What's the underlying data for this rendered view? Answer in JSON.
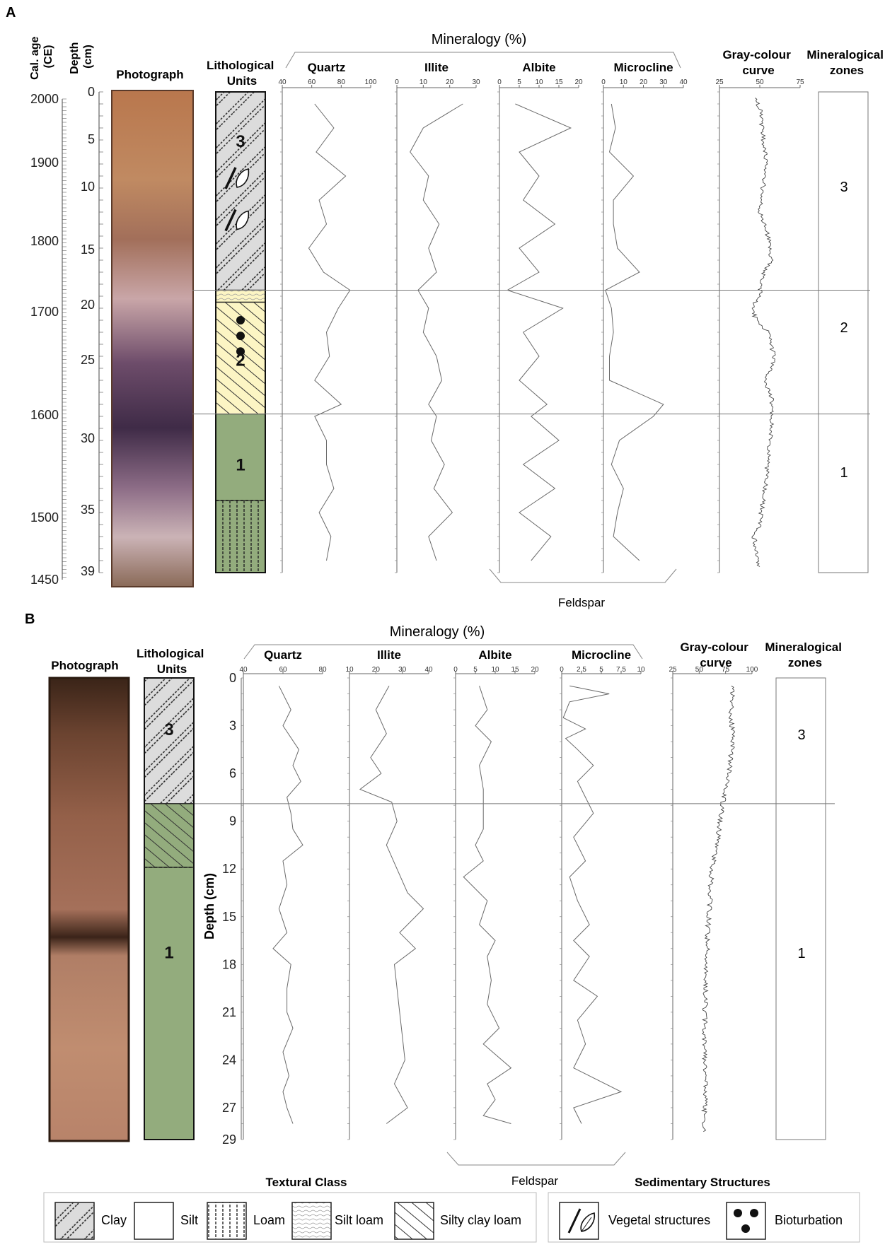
{
  "panelA": {
    "label": "A",
    "mineralogy_title": "Mineralogy (%)",
    "feldspar_label": "Feldspar",
    "headers": {
      "age": "Cal. age (CE)",
      "depth": "Depth (cm)",
      "photo": "Photograph",
      "litho": "Lithological Units",
      "gray": "Gray-colour curve",
      "zones": "Mineralogical zones"
    },
    "age_ticks": [
      "2000",
      "1900",
      "1800",
      "1700",
      "1600",
      "1500",
      "1450"
    ],
    "depth_ticks": [
      "0",
      "5",
      "10",
      "15",
      "20",
      "25",
      "30",
      "35",
      "39"
    ],
    "units": [
      "3",
      "2",
      "1"
    ],
    "zones": [
      "3",
      "2",
      "1"
    ],
    "boundaries_depth_cm": [
      16.5,
      26.8
    ],
    "litho": {
      "unit3_top": 0,
      "unit3_bottom": 16.5,
      "unit3_texture": "Clay",
      "thin_top": 16.5,
      "thin_bottom": 17.5,
      "thin_texture": "Silt loam",
      "unit2_top": 17.5,
      "unit2_bottom": 26.8,
      "unit2_texture": "Silty clay loam",
      "unit1_top": 26.8,
      "unit1_bottom": 40,
      "unit1_texture": "Silt",
      "loam_top": 34,
      "loam_bottom": 40,
      "loam_texture": "Loam",
      "vegetal_depths": [
        7,
        10.5
      ],
      "bioturbation_depths": [
        19,
        20.3,
        21.6
      ]
    },
    "columns": [
      {
        "name": "Quartz",
        "range": [
          40,
          100
        ],
        "ticks": [
          "40",
          "60",
          "80",
          "100"
        ]
      },
      {
        "name": "Illite",
        "range": [
          0,
          30
        ],
        "ticks": [
          "0",
          "10",
          "20",
          "30"
        ]
      },
      {
        "name": "Albite",
        "range": [
          0,
          20
        ],
        "ticks": [
          "0",
          "5",
          "10",
          "15",
          "20"
        ]
      },
      {
        "name": "Microcline",
        "range": [
          0,
          40
        ],
        "ticks": [
          "0",
          "10",
          "20",
          "30",
          "40"
        ]
      },
      {
        "name": "Gray-colour curve",
        "range": [
          25,
          75
        ],
        "ticks": [
          "25",
          "50",
          "75"
        ]
      }
    ]
  },
  "panelB": {
    "label": "B",
    "mineralogy_title": "Mineralogy (%)",
    "feldspar_label": "Feldspar",
    "depth_axis_label": "Depth (cm)",
    "headers": {
      "photo": "Photograph",
      "litho": "Lithological Units",
      "gray": "Gray-colour curve",
      "zones": "Mineralogical zones"
    },
    "depth_ticks": [
      "0",
      "3",
      "6",
      "9",
      "12",
      "15",
      "18",
      "21",
      "24",
      "27",
      "29"
    ],
    "units": [
      "3",
      "1"
    ],
    "zones": [
      "3",
      "1"
    ],
    "boundaries_depth_cm": [
      7.9
    ],
    "litho": {
      "unit3_top": 0,
      "unit3_bottom": 7.9,
      "unit3_texture": "Clay",
      "sub_top": 7.9,
      "sub_bottom": 11.9,
      "sub_texture": "Silty clay loam",
      "unit1_top": 11.9,
      "unit1_bottom": 29,
      "unit1_texture": "Silt"
    },
    "columns": [
      {
        "name": "Quartz",
        "range": [
          40,
          80
        ],
        "ticks": [
          "40",
          "60",
          "80"
        ]
      },
      {
        "name": "Illite",
        "range": [
          10,
          40
        ],
        "ticks": [
          "10",
          "20",
          "30",
          "40"
        ]
      },
      {
        "name": "Albite",
        "range": [
          0,
          20
        ],
        "ticks": [
          "0",
          "5",
          "10",
          "15",
          "20"
        ]
      },
      {
        "name": "Microcline",
        "range": [
          0,
          10
        ],
        "ticks": [
          "0",
          "2.5",
          "5",
          "7.5",
          "10"
        ]
      },
      {
        "name": "Gray-colour curve",
        "range": [
          25,
          100
        ],
        "ticks": [
          "25",
          "50",
          "75",
          "100"
        ]
      }
    ]
  },
  "legend": {
    "textural_title": "Textural Class",
    "textural": [
      "Clay",
      "Silt",
      "Loam",
      "Silt loam",
      "Silty clay loam"
    ],
    "structures_title": "Sedimentary Structures",
    "structures": [
      "Vegetal structures",
      "Bioturbation"
    ]
  },
  "colors": {
    "unit_grey": "#dcdcdc",
    "unit_yellow": "#fcf5c4",
    "unit_green": "#93ac7d",
    "line": "#555555"
  },
  "chart_data": [
    {
      "type": "line",
      "panel": "A",
      "depth_unit": "cm",
      "depth_range": [
        0,
        40
      ],
      "series": [
        {
          "name": "Quartz",
          "depth": [
            1,
            3,
            5,
            7,
            9,
            11,
            13,
            15,
            16.5,
            18,
            20,
            22,
            24,
            26,
            27,
            29,
            31,
            33,
            35,
            37,
            39
          ],
          "values": [
            62,
            75,
            63,
            83,
            65,
            70,
            58,
            68,
            86,
            78,
            70,
            72,
            62,
            80,
            62,
            70,
            70,
            75,
            65,
            73,
            70
          ]
        },
        {
          "name": "Illite",
          "depth": [
            1,
            3,
            5,
            7,
            9,
            11,
            13,
            15,
            16.5,
            18,
            20,
            22,
            24,
            26,
            27,
            29,
            31,
            33,
            35,
            37,
            39
          ],
          "values": [
            25,
            10,
            5,
            12,
            10,
            16,
            12,
            15,
            8,
            12,
            10,
            15,
            17,
            12,
            15,
            13,
            18,
            14,
            21,
            12,
            15
          ]
        },
        {
          "name": "Albite",
          "depth": [
            1,
            3,
            5,
            7,
            9,
            11,
            13,
            15,
            16.5,
            18,
            20,
            22,
            24,
            26,
            27,
            29,
            31,
            33,
            35,
            37,
            39
          ],
          "values": [
            4,
            18,
            5,
            10,
            6,
            14,
            5,
            10,
            2,
            16,
            6,
            10,
            5,
            12,
            8,
            15,
            6,
            14,
            5,
            13,
            8
          ]
        },
        {
          "name": "Microcline",
          "depth": [
            1,
            3,
            5,
            7,
            9,
            11,
            13,
            15,
            16.5,
            18,
            20,
            22,
            24,
            26,
            27,
            29,
            31,
            33,
            35,
            37,
            39
          ],
          "values": [
            4,
            6,
            3,
            15,
            5,
            5,
            7,
            18,
            1,
            4,
            5,
            3,
            3,
            30,
            25,
            8,
            4,
            10,
            7,
            5,
            18
          ]
        },
        {
          "name": "Gray-colour curve",
          "depth": [
            0.5,
            2,
            4,
            6,
            8,
            10,
            12,
            14,
            15,
            16,
            17,
            18,
            19,
            20,
            22,
            24,
            26,
            28,
            30,
            32,
            34,
            36,
            37,
            38,
            39.5
          ],
          "values": [
            48,
            51,
            52,
            54,
            52,
            50,
            55,
            57,
            52,
            51,
            50,
            45,
            48,
            55,
            59,
            54,
            58,
            57,
            56,
            54,
            52,
            50,
            46,
            48,
            50
          ]
        }
      ]
    },
    {
      "type": "line",
      "panel": "B",
      "depth_unit": "cm",
      "depth_range": [
        0,
        29
      ],
      "series": [
        {
          "name": "Quartz",
          "depth": [
            0.5,
            2,
            3,
            4.5,
            5.5,
            6.5,
            7.5,
            8.5,
            9.5,
            10.5,
            11.5,
            13,
            14.5,
            16,
            17,
            18,
            19.5,
            21,
            22,
            23.5,
            25,
            26,
            27,
            28
          ],
          "values": [
            58,
            64,
            60,
            68,
            65,
            69,
            62,
            64,
            65,
            70,
            60,
            62,
            58,
            62,
            55,
            64,
            62,
            62,
            65,
            60,
            63,
            60,
            62,
            65
          ]
        },
        {
          "name": "Illite",
          "depth": [
            0.5,
            2,
            3.5,
            5,
            6,
            7,
            7.8,
            9,
            10.5,
            12,
            13.5,
            14.5,
            16,
            17,
            18,
            19.5,
            21,
            22.5,
            24,
            25.5,
            27,
            28
          ],
          "values": [
            25,
            20,
            24,
            18,
            22,
            14,
            26,
            28,
            24,
            28,
            32,
            38,
            29,
            35,
            27,
            28,
            29,
            30,
            31,
            27,
            32,
            24
          ]
        },
        {
          "name": "Albite",
          "depth": [
            0.5,
            2,
            3,
            4,
            5.5,
            7,
            8,
            9.5,
            10.5,
            11.5,
            12.5,
            14,
            15.5,
            16.5,
            17.5,
            19,
            20.5,
            22,
            23,
            24.5,
            25.5,
            26.5,
            27.5,
            28
          ],
          "values": [
            6,
            8,
            5,
            9,
            6,
            7,
            7,
            7,
            5,
            7,
            2,
            8,
            6,
            10,
            8,
            9,
            8,
            11,
            7,
            14,
            8,
            10,
            7,
            14
          ]
        },
        {
          "name": "Microcline",
          "depth": [
            0.5,
            1,
            1.5,
            2.5,
            3.2,
            3.8,
            4.5,
            5.5,
            6.5,
            7.5,
            8.5,
            10,
            11.5,
            12.5,
            14,
            15.5,
            16.5,
            17.5,
            19,
            20,
            21.5,
            23,
            24.5,
            26,
            27,
            28
          ],
          "values": [
            1,
            6,
            1,
            0.2,
            3,
            0.5,
            2,
            4,
            2,
            3,
            4,
            1.5,
            3,
            1,
            2,
            3.5,
            1.5,
            3.5,
            1.5,
            4.5,
            2,
            3,
            1.5,
            7.5,
            1.5,
            2.5
          ]
        },
        {
          "name": "Gray-colour curve",
          "depth": [
            0.5,
            2,
            4,
            6,
            7,
            8,
            9,
            10,
            12,
            14,
            16,
            18,
            20,
            22,
            24,
            26,
            27,
            28.5
          ],
          "values": [
            82,
            80,
            82,
            78,
            75,
            72,
            70,
            68,
            62,
            60,
            58,
            57,
            56,
            55,
            55,
            56,
            55,
            54
          ]
        }
      ]
    }
  ]
}
